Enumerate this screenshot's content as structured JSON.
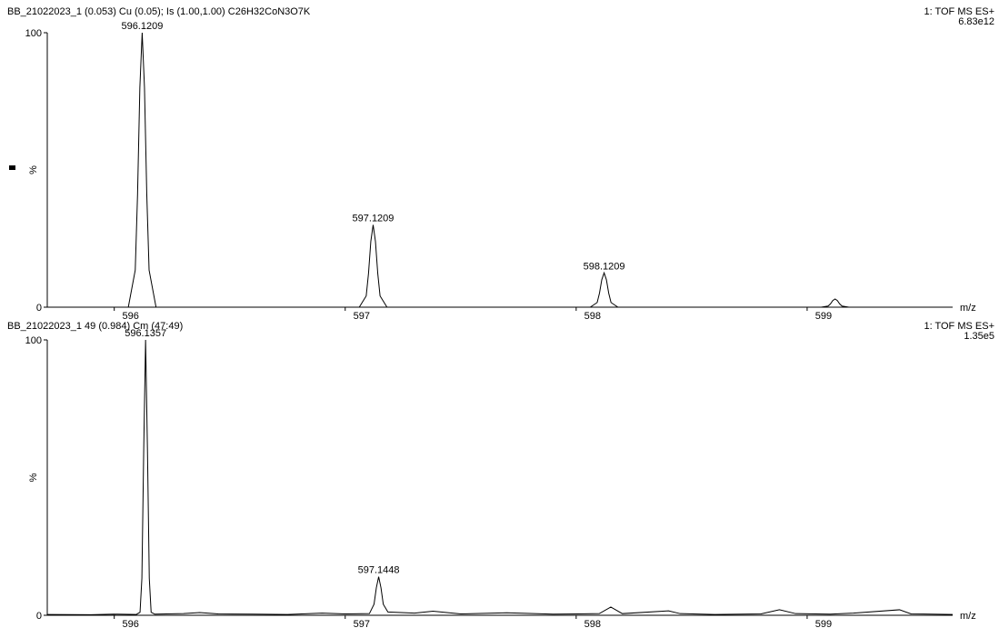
{
  "chart_data": [
    {
      "type": "line",
      "title": "BB_21022023_1  (0.053) Cu (0.05); Is (1.00,1.00) C26H32CoN3O7K",
      "instrument": "1: TOF MS ES+",
      "intensity": "6.83e12",
      "xlabel": "m/z",
      "ylabel": "%",
      "color": "#000000",
      "xlim": [
        595.71,
        599.63
      ],
      "xticks": [
        596,
        597,
        598,
        599
      ],
      "ylim": [
        0,
        100
      ],
      "yticks": [
        0,
        100
      ],
      "x": [
        595.71,
        596.0609,
        596.0909,
        596.1009,
        596.1109,
        596.1209,
        596.1309,
        596.1409,
        596.1509,
        596.1809,
        597.0609,
        597.0909,
        597.1009,
        597.1109,
        597.1209,
        597.1309,
        597.1409,
        597.1509,
        597.1809,
        598.0609,
        598.0909,
        598.1009,
        598.1109,
        598.1209,
        598.1309,
        598.1409,
        598.1509,
        598.1809,
        599.0609,
        599.0909,
        599.1009,
        599.1109,
        599.1209,
        599.1309,
        599.1409,
        599.1509,
        599.1809,
        599.63
      ],
      "values": [
        0,
        0,
        13.5,
        41,
        80,
        100,
        80,
        41,
        13.5,
        0,
        0,
        4.1,
        12.3,
        24,
        30,
        24,
        12.3,
        4.1,
        0,
        0,
        1.7,
        5.1,
        10,
        12.5,
        10,
        5.1,
        1.7,
        0,
        0,
        0.4,
        1.2,
        2.4,
        3,
        2.4,
        1.2,
        0.4,
        0,
        0
      ],
      "peaks": [
        {
          "x": 596.1209,
          "y": 100
        },
        {
          "x": 597.1209,
          "y": 30
        },
        {
          "x": 598.1209,
          "y": 12.5
        }
      ]
    },
    {
      "type": "line",
      "title": "BB_21022023_1 49 (0.984) Cm (47:49)",
      "instrument": "1: TOF MS ES+",
      "intensity": "1.35e5",
      "xlabel": "m/z",
      "ylabel": "%",
      "color": "#000000",
      "xlim": [
        595.71,
        599.63
      ],
      "xticks": [
        596,
        597,
        598,
        599
      ],
      "ylim": [
        0,
        100
      ],
      "yticks": [
        0,
        100
      ],
      "x": [
        595.71,
        595.9,
        596.0,
        596.0957,
        596.1117,
        596.1197,
        596.1277,
        596.1357,
        596.1437,
        596.1517,
        596.1597,
        596.1757,
        596.3,
        596.37,
        596.45,
        596.6,
        596.75,
        596.9,
        597.0,
        597.1048,
        597.1248,
        597.1348,
        597.1448,
        597.1548,
        597.1648,
        597.1848,
        597.3,
        597.38,
        597.5,
        597.7,
        597.9,
        598.1,
        598.15,
        598.2,
        598.4,
        598.45,
        598.6,
        598.8,
        598.88,
        598.95,
        599.1,
        599.2,
        599.4,
        599.45,
        599.63
      ],
      "values": [
        0.3,
        0.2,
        0.4,
        0.3,
        1.1,
        13.5,
        60.6,
        100,
        60.6,
        13.5,
        1.1,
        0.4,
        0.6,
        1.0,
        0.5,
        0.4,
        0.3,
        0.8,
        0.5,
        0.6,
        4,
        10,
        14,
        10,
        4,
        1.2,
        0.8,
        1.5,
        0.5,
        0.9,
        0.4,
        0.6,
        3,
        0.6,
        1.6,
        0.6,
        0.3,
        0.5,
        2,
        0.6,
        0.4,
        0.8,
        2,
        0.5,
        0.3
      ],
      "peaks": [
        {
          "x": 596.1357,
          "y": 100
        },
        {
          "x": 597.1448,
          "y": 14
        }
      ]
    }
  ]
}
